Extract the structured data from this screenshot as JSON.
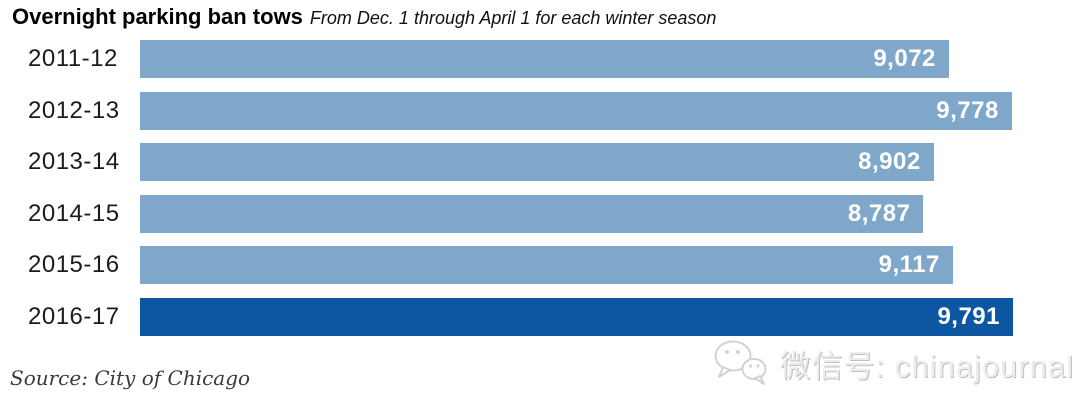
{
  "header": {
    "title": "Overnight parking ban tows",
    "subtitle": "From Dec. 1 through April 1 for each winter season"
  },
  "chart_data": {
    "type": "bar",
    "orientation": "horizontal",
    "title": "Overnight parking ban tows",
    "subtitle": "From Dec. 1 through April 1 for each winter season",
    "categories": [
      "2011-12",
      "2012-13",
      "2013-14",
      "2014-15",
      "2015-16",
      "2016-17"
    ],
    "values": [
      9072,
      9778,
      8902,
      8787,
      9117,
      9791
    ],
    "value_labels": [
      "9,072",
      "9,778",
      "8,902",
      "8,787",
      "9,117",
      "9,791"
    ],
    "xlim": [
      0,
      9791
    ],
    "grid": false,
    "legend": false,
    "highlight_index": 5,
    "colors": {
      "bar": "#7ea7c9",
      "bar_highlight": "#0d57a2",
      "value_text": "#ffffff",
      "category_text": "#1c1c1c"
    }
  },
  "footer": {
    "source": "Source: City of Chicago"
  },
  "watermark": {
    "icon": "wechat-icon",
    "text": "微信号: chinajournal"
  }
}
